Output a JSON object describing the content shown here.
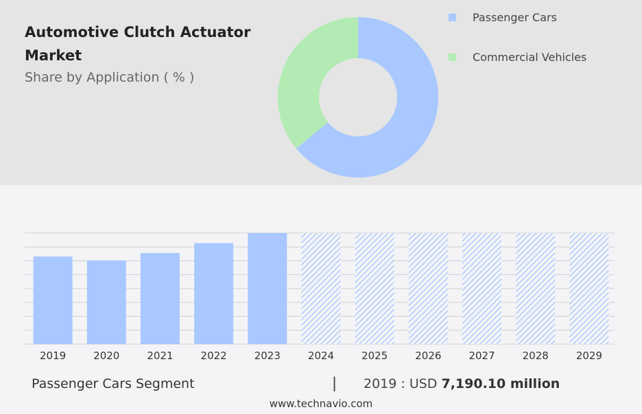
{
  "header": {
    "title": "Automotive Clutch Actuator Market",
    "subtitle": "Share by Application ( % )"
  },
  "colors": {
    "passenger": "#a8c8ff",
    "commercial": "#b2ecb4",
    "grid": "#cfcfd4",
    "hatch": "#a8c8ff"
  },
  "chart_data": [
    {
      "type": "pie",
      "variant": "donut",
      "title": "Share by Application ( % )",
      "legend": "right",
      "series": [
        {
          "name": "Passenger Cars",
          "value": 64
        },
        {
          "name": "Commercial Vehicles",
          "value": 36
        }
      ]
    },
    {
      "type": "bar",
      "categories": [
        "2019",
        "2020",
        "2021",
        "2022",
        "2023",
        "2024",
        "2025",
        "2026",
        "2027",
        "2028",
        "2029"
      ],
      "values": [
        7190.1,
        7000,
        7360,
        7850,
        8340,
        null,
        null,
        null,
        null,
        null,
        null
      ],
      "forecast": [
        false,
        false,
        false,
        false,
        false,
        true,
        true,
        true,
        true,
        true,
        true
      ],
      "ylim": [
        2900,
        8340
      ],
      "grid": true
    }
  ],
  "footer": {
    "segment_label": "Passenger Cars Segment",
    "separator": "|",
    "value_prefix": "2019 : USD",
    "value_bold": "7,190.10 million",
    "site": "www.technavio.com"
  }
}
